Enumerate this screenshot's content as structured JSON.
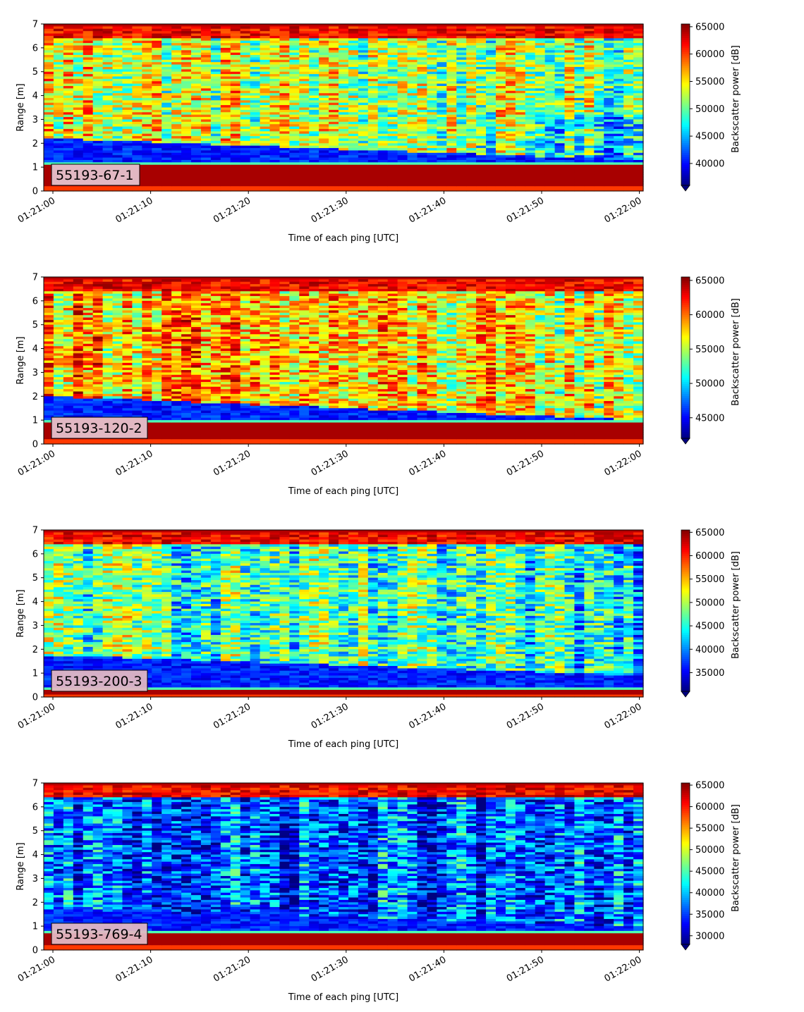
{
  "chart_data": [
    {
      "type": "heatmap",
      "label": "55193-67-1",
      "xlabel": "Time of each ping [UTC]",
      "ylabel": "Range [m]",
      "x_ticks": [
        "01:21:00",
        "01:21:10",
        "01:21:20",
        "01:21:30",
        "01:21:40",
        "01:21:50",
        "01:22:00"
      ],
      "y_ticks": [
        "0",
        "1",
        "2",
        "3",
        "4",
        "5",
        "6",
        "7"
      ],
      "ylim": [
        0,
        7
      ],
      "colorbar": {
        "label": "Backscatter power [dB]",
        "ticks": [
          "65000",
          "60000",
          "55000",
          "50000",
          "45000",
          "40000"
        ],
        "vmin": 36000,
        "vmax": 65500,
        "extend": "min"
      },
      "colormap": "jet",
      "features": {
        "bottom_band": [
          0.25,
          1.1
        ],
        "dark_layer_top_start": 2.2,
        "dark_layer_top_end": 1.3,
        "noise_level": 0.62,
        "late_dark_patch": true
      }
    },
    {
      "type": "heatmap",
      "label": "55193-120-2",
      "xlabel": "Time of each ping [UTC]",
      "ylabel": "Range [m]",
      "x_ticks": [
        "01:21:00",
        "01:21:10",
        "01:21:20",
        "01:21:30",
        "01:21:40",
        "01:21:50",
        "01:22:00"
      ],
      "y_ticks": [
        "0",
        "1",
        "2",
        "3",
        "4",
        "5",
        "6",
        "7"
      ],
      "ylim": [
        0,
        7
      ],
      "colorbar": {
        "label": "Backscatter power [dB]",
        "ticks": [
          "65000",
          "60000",
          "55000",
          "50000",
          "45000"
        ],
        "vmin": 42000,
        "vmax": 65500,
        "extend": "min"
      },
      "colormap": "jet",
      "features": {
        "bottom_band": [
          0.25,
          0.85
        ],
        "dark_layer_top_start": 2.0,
        "dark_layer_top_end": 1.0,
        "noise_level": 0.72,
        "late_dark_patch": false
      }
    },
    {
      "type": "heatmap",
      "label": "55193-200-3",
      "xlabel": "Time of each ping [UTC]",
      "ylabel": "Range [m]",
      "x_ticks": [
        "01:21:00",
        "01:21:10",
        "01:21:20",
        "01:21:30",
        "01:21:40",
        "01:21:50",
        "01:22:00"
      ],
      "y_ticks": [
        "0",
        "1",
        "2",
        "3",
        "4",
        "5",
        "6",
        "7"
      ],
      "ylim": [
        0,
        7
      ],
      "colorbar": {
        "label": "Backscatter power [dB]",
        "ticks": [
          "65000",
          "60000",
          "55000",
          "50000",
          "45000",
          "40000",
          "35000"
        ],
        "vmin": 31000,
        "vmax": 65500,
        "extend": "min"
      },
      "colormap": "jet",
      "features": {
        "bottom_band": [
          0.1,
          0.3
        ],
        "dark_layer_top_start": 1.75,
        "dark_layer_top_end": 0.9,
        "noise_level": 0.48,
        "late_dark_patch": false
      }
    },
    {
      "type": "heatmap",
      "label": "55193-769-4",
      "xlabel": "Time of each ping [UTC]",
      "ylabel": "Range [m]",
      "x_ticks": [
        "01:21:00",
        "01:21:10",
        "01:21:20",
        "01:21:30",
        "01:21:40",
        "01:21:50",
        "01:22:00"
      ],
      "y_ticks": [
        "0",
        "1",
        "2",
        "3",
        "4",
        "5",
        "6",
        "7"
      ],
      "ylim": [
        0,
        7
      ],
      "colorbar": {
        "label": "Backscatter power [dB]",
        "ticks": [
          "65000",
          "60000",
          "55000",
          "50000",
          "45000",
          "40000",
          "35000",
          "30000"
        ],
        "vmin": 28000,
        "vmax": 65500,
        "extend": "min"
      },
      "colormap": "jet",
      "features": {
        "bottom_band": [
          0.25,
          0.7
        ],
        "dark_layer_top_start": 1.7,
        "dark_layer_top_end": 1.0,
        "noise_level": 0.2,
        "late_dark_patch": false
      }
    }
  ]
}
